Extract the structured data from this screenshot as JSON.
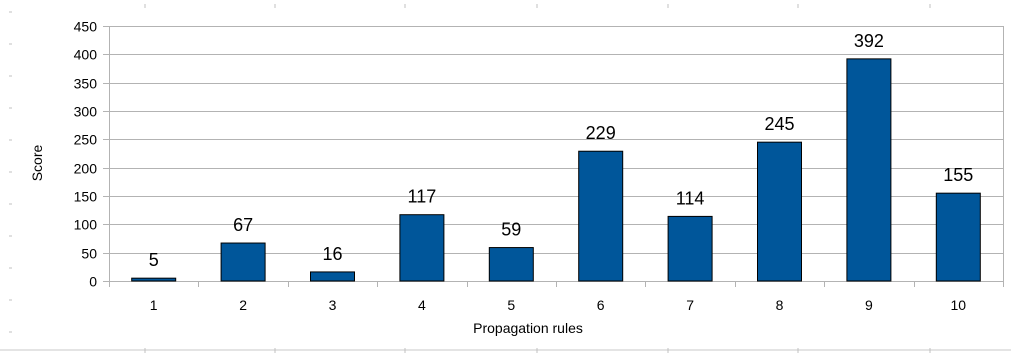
{
  "chart_data": {
    "type": "bar",
    "title": "",
    "xlabel": "Propagation rules",
    "ylabel": "Score",
    "categories": [
      "1",
      "2",
      "3",
      "4",
      "5",
      "6",
      "7",
      "8",
      "9",
      "10"
    ],
    "values": [
      5,
      67,
      16,
      117,
      59,
      229,
      114,
      245,
      392,
      155
    ],
    "ylim": [
      0,
      450
    ],
    "yticks": [
      0,
      50,
      100,
      150,
      200,
      250,
      300,
      350,
      400,
      450
    ],
    "grid": true,
    "legend": "none",
    "show_data_labels": true,
    "colors": {
      "bar_fill": "#00569a",
      "bar_stroke": "#000000",
      "grid": "#b3b3b3",
      "axis": "#b3b3b3",
      "text": "#000000"
    }
  }
}
